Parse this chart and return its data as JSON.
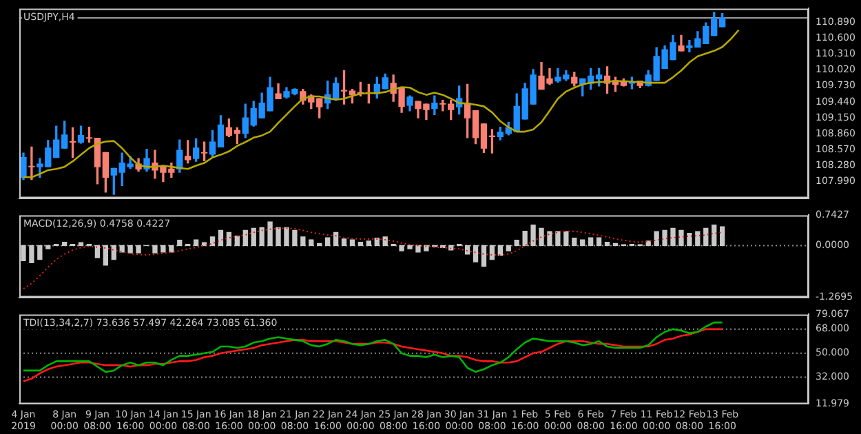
{
  "chart_data": [
    {
      "type": "candlestick",
      "title": "USDJPY,H4",
      "tick_labels": "y",
      "categories": [
        null,
        null,
        null,
        null,
        null,
        null,
        null,
        null,
        null,
        null,
        null,
        null,
        null,
        null,
        null,
        null,
        null,
        null,
        null,
        null,
        null,
        null,
        null,
        null,
        null,
        null,
        null,
        null,
        null,
        null,
        null,
        null,
        null,
        null,
        null,
        null,
        null,
        null,
        null,
        null,
        null,
        null,
        null,
        null,
        null,
        null,
        null,
        null,
        null,
        null,
        null,
        null,
        null,
        null,
        null,
        null,
        null,
        null,
        null,
        null,
        null,
        null,
        null,
        null,
        null,
        null,
        null,
        null,
        null,
        null,
        null,
        null,
        null,
        null,
        null,
        null,
        null,
        null,
        null,
        null,
        null,
        null,
        null,
        null,
        null,
        null,
        null,
        null,
        null,
        null,
        null,
        null,
        null,
        null,
        null,
        null
      ],
      "series": [
        {
          "ohlc": [
            [
              108.07,
              108.51,
              108.03,
              108.43
            ],
            [
              108.27,
              108.62,
              108.03,
              108.26
            ],
            [
              108.26,
              108.41,
              108.07,
              108.31
            ],
            [
              108.26,
              108.74,
              108.26,
              108.6
            ],
            [
              108.43,
              109.0,
              108.43,
              108.75
            ],
            [
              108.6,
              109.09,
              108.6,
              108.84
            ],
            [
              108.72,
              108.97,
              108.43,
              108.71
            ],
            [
              108.71,
              109.0,
              108.69,
              108.83
            ],
            [
              108.79,
              108.98,
              108.71,
              108.78
            ],
            [
              108.78,
              108.78,
              107.95,
              108.26
            ],
            [
              108.52,
              108.52,
              107.8,
              108.07
            ],
            [
              108.11,
              108.23,
              107.76,
              108.23
            ],
            [
              108.16,
              108.51,
              107.92,
              108.33
            ],
            [
              108.26,
              108.45,
              108.23,
              108.31
            ],
            [
              108.31,
              108.41,
              108.18,
              108.22
            ],
            [
              108.22,
              108.58,
              108.18,
              108.41
            ],
            [
              108.33,
              108.56,
              108.05,
              108.2
            ],
            [
              108.27,
              108.27,
              107.99,
              108.16
            ],
            [
              108.22,
              108.33,
              108.07,
              108.16
            ],
            [
              108.22,
              108.75,
              108.16,
              108.56
            ],
            [
              108.45,
              108.74,
              108.33,
              108.39
            ],
            [
              108.41,
              108.77,
              108.36,
              108.6
            ],
            [
              108.52,
              108.71,
              108.37,
              108.51
            ],
            [
              108.49,
              108.92,
              108.43,
              108.71
            ],
            [
              108.62,
              109.19,
              108.62,
              109.02
            ],
            [
              108.97,
              109.13,
              108.81,
              108.83
            ],
            [
              108.92,
              108.97,
              108.68,
              108.87
            ],
            [
              108.87,
              109.4,
              108.79,
              109.15
            ],
            [
              109.02,
              109.45,
              109.0,
              109.32
            ],
            [
              109.15,
              109.6,
              109.15,
              109.42
            ],
            [
              109.28,
              109.89,
              109.28,
              109.7
            ],
            [
              109.59,
              109.77,
              109.5,
              109.5
            ],
            [
              109.53,
              109.7,
              109.51,
              109.63
            ],
            [
              109.59,
              109.68,
              109.57,
              109.67
            ],
            [
              109.63,
              109.67,
              109.4,
              109.47
            ],
            [
              109.55,
              109.57,
              109.32,
              109.44
            ],
            [
              109.5,
              109.5,
              109.15,
              109.35
            ],
            [
              109.42,
              109.82,
              109.32,
              109.57
            ],
            [
              109.5,
              109.88,
              109.47,
              109.78
            ],
            [
              109.65,
              110.01,
              109.4,
              109.64
            ],
            [
              109.64,
              109.67,
              109.42,
              109.57
            ],
            [
              109.61,
              109.8,
              109.55,
              109.6
            ],
            [
              109.61,
              109.76,
              109.42,
              109.6
            ],
            [
              109.59,
              109.89,
              109.51,
              109.76
            ],
            [
              109.68,
              109.95,
              109.68,
              109.88
            ],
            [
              109.78,
              109.93,
              109.45,
              109.6
            ],
            [
              109.7,
              109.7,
              109.25,
              109.36
            ],
            [
              109.38,
              109.55,
              109.28,
              109.53
            ],
            [
              109.45,
              109.45,
              109.15,
              109.32
            ],
            [
              109.4,
              109.4,
              109.12,
              109.3
            ],
            [
              109.32,
              109.55,
              109.21,
              109.42
            ],
            [
              109.41,
              109.47,
              109.28,
              109.4
            ],
            [
              109.4,
              109.47,
              109.12,
              109.3
            ],
            [
              109.35,
              109.73,
              109.22,
              109.5
            ],
            [
              109.42,
              109.76,
              108.79,
              109.15
            ],
            [
              109.28,
              109.28,
              108.68,
              108.79
            ],
            [
              109.04,
              109.04,
              108.52,
              108.6
            ],
            [
              108.82,
              108.94,
              108.51,
              108.81
            ],
            [
              108.81,
              108.98,
              108.75,
              108.89
            ],
            [
              108.87,
              109.07,
              108.84,
              108.97
            ],
            [
              108.9,
              109.59,
              108.9,
              109.36
            ],
            [
              109.13,
              109.78,
              109.13,
              109.68
            ],
            [
              109.4,
              110.03,
              109.4,
              109.93
            ],
            [
              109.91,
              110.16,
              109.67,
              109.67
            ],
            [
              109.86,
              110.05,
              109.76,
              109.78
            ],
            [
              109.82,
              110.05,
              109.8,
              109.89
            ],
            [
              109.86,
              110.01,
              109.83,
              109.93
            ],
            [
              109.89,
              109.98,
              109.73,
              109.78
            ],
            [
              109.76,
              109.86,
              109.55,
              109.86
            ],
            [
              109.78,
              110.05,
              109.67,
              109.91
            ],
            [
              109.86,
              110.05,
              109.73,
              109.93
            ],
            [
              109.91,
              110.08,
              109.6,
              109.78
            ],
            [
              109.83,
              109.89,
              109.63,
              109.76
            ],
            [
              109.82,
              109.86,
              109.73,
              109.74
            ],
            [
              109.78,
              109.89,
              109.68,
              109.8
            ],
            [
              109.82,
              109.82,
              109.7,
              109.74
            ],
            [
              109.74,
              110.01,
              109.73,
              109.93
            ],
            [
              109.83,
              110.43,
              109.83,
              110.27
            ],
            [
              110.05,
              110.46,
              110.05,
              110.39
            ],
            [
              110.21,
              110.65,
              110.21,
              110.52
            ],
            [
              110.46,
              110.65,
              110.37,
              110.37
            ],
            [
              110.43,
              110.56,
              110.35,
              110.46
            ],
            [
              110.44,
              110.72,
              110.44,
              110.59
            ],
            [
              110.5,
              110.88,
              110.5,
              110.81
            ],
            [
              110.65,
              111.07,
              110.65,
              110.96
            ],
            [
              110.81,
              111.05,
              110.81,
              110.97
            ],
            null,
            null,
            null,
            null,
            null,
            null,
            null,
            null,
            null,
            null
          ],
          "colors": [
            "#1e90ff",
            "#fa8072",
            "#1e90ff",
            "#1e90ff",
            "#1e90ff",
            "#1e90ff",
            "#fa8072",
            "#1e90ff",
            "#fa8072",
            "#fa8072",
            "#fa8072",
            "#1e90ff",
            "#1e90ff",
            "#1e90ff",
            "#fa8072",
            "#1e90ff",
            "#fa8072",
            "#fa8072",
            "#fa8072",
            "#1e90ff",
            "#fa8072",
            "#1e90ff",
            "#fa8072",
            "#1e90ff",
            "#1e90ff",
            "#fa8072",
            "#fa8072",
            "#1e90ff",
            "#1e90ff",
            "#1e90ff",
            "#1e90ff",
            "#fa8072",
            "#1e90ff",
            "#1e90ff",
            "#fa8072",
            "#fa8072",
            "#fa8072",
            "#1e90ff",
            "#1e90ff",
            "#fa8072",
            "#fa8072",
            "#fa8072",
            "#fa8072",
            "#1e90ff",
            "#1e90ff",
            "#fa8072",
            "#fa8072",
            "#1e90ff",
            "#fa8072",
            "#fa8072",
            "#1e90ff",
            "#fa8072",
            "#fa8072",
            "#1e90ff",
            "#fa8072",
            "#fa8072",
            "#fa8072",
            "#fa8072",
            "#1e90ff",
            "#1e90ff",
            "#1e90ff",
            "#1e90ff",
            "#1e90ff",
            "#fa8072",
            "#fa8072",
            "#1e90ff",
            "#1e90ff",
            "#fa8072",
            "#1e90ff",
            "#1e90ff",
            "#1e90ff",
            "#fa8072",
            "#fa8072",
            "#fa8072",
            "#1e90ff",
            "#fa8072",
            "#1e90ff",
            "#1e90ff",
            "#1e90ff",
            "#1e90ff",
            "#fa8072",
            "#1e90ff",
            "#1e90ff",
            "#1e90ff",
            "#1e90ff",
            "#1e90ff",
            null,
            null,
            null,
            null,
            null,
            null,
            null,
            null,
            null,
            null
          ]
        },
        {
          "type": "line",
          "color": "#b5a800",
          "values": [
            108.07,
            108.07,
            108.13,
            108.2,
            108.22,
            108.26,
            108.36,
            108.48,
            108.6,
            108.68,
            108.72,
            108.73,
            108.6,
            108.43,
            108.29,
            108.26,
            108.26,
            108.28,
            108.26,
            108.24,
            108.22,
            108.28,
            108.33,
            108.43,
            108.48,
            108.54,
            108.64,
            108.71,
            108.79,
            108.83,
            108.9,
            109.06,
            109.21,
            109.36,
            109.5,
            109.54,
            109.54,
            109.51,
            109.48,
            109.5,
            109.55,
            109.59,
            109.6,
            109.6,
            109.62,
            109.67,
            109.71,
            109.7,
            109.62,
            109.57,
            109.61,
            109.57,
            109.5,
            109.42,
            109.41,
            109.39,
            109.36,
            109.25,
            109.09,
            108.98,
            108.9,
            108.9,
            108.94,
            109.07,
            109.28,
            109.5,
            109.63,
            109.7,
            109.76,
            109.79,
            109.8,
            109.81,
            109.82,
            109.82,
            109.81,
            109.8,
            109.79,
            109.79,
            109.79,
            109.89,
            110.01,
            110.16,
            110.27,
            110.32,
            110.37,
            110.44,
            110.58,
            110.75,
            null,
            null,
            null,
            null,
            null,
            null,
            null,
            null
          ]
        }
      ],
      "ylim": [
        107.69,
        111.14
      ],
      "yticks": [
        {
          "value": 107.99,
          "label": "107.990"
        },
        {
          "value": 108.28,
          "label": "108.280"
        },
        {
          "value": 108.57,
          "label": "108.570"
        },
        {
          "value": 108.86,
          "label": "108.860"
        },
        {
          "value": 109.15,
          "label": "109.150"
        },
        {
          "value": 109.44,
          "label": "109.440"
        },
        {
          "value": 109.73,
          "label": "109.730"
        },
        {
          "value": 110.02,
          "label": "110.020"
        },
        {
          "value": 110.31,
          "label": "110.310"
        },
        {
          "value": 110.6,
          "label": "110.600"
        },
        {
          "value": 110.89,
          "label": "110.890"
        }
      ],
      "ref_lines": [
        {
          "axis": "y",
          "value": 110.97,
          "color": "#9a9a9a"
        }
      ]
    },
    {
      "type": "bar",
      "title": "MACD(12,26,9) 0.4758 0.4227",
      "tick_labels": "y",
      "categories": [
        null,
        null,
        null,
        null,
        null,
        null,
        null,
        null,
        null,
        null,
        null,
        null,
        null,
        null,
        null,
        null,
        null,
        null,
        null,
        null,
        null,
        null,
        null,
        null,
        null,
        null,
        null,
        null,
        null,
        null,
        null,
        null,
        null,
        null,
        null,
        null,
        null,
        null,
        null,
        null,
        null,
        null,
        null,
        null,
        null,
        null,
        null,
        null,
        null,
        null,
        null,
        null,
        null,
        null,
        null,
        null,
        null,
        null,
        null,
        null,
        null,
        null,
        null,
        null,
        null,
        null,
        null,
        null,
        null,
        null,
        null,
        null,
        null,
        null,
        null,
        null,
        null,
        null,
        null,
        null,
        null,
        null,
        null,
        null,
        null,
        null,
        null,
        null,
        null,
        null,
        null,
        null,
        null,
        null,
        null,
        null
      ],
      "series": [
        {
          "color": "#c8c8c8",
          "values": [
            -0.37,
            -0.42,
            -0.34,
            -0.08,
            0.03,
            0.08,
            0.03,
            0.07,
            0.03,
            -0.3,
            -0.48,
            -0.34,
            -0.16,
            -0.18,
            -0.18,
            0.0,
            -0.18,
            -0.16,
            -0.16,
            0.13,
            0.03,
            0.14,
            0.07,
            0.21,
            0.37,
            0.32,
            0.23,
            0.37,
            0.42,
            0.44,
            0.58,
            0.44,
            0.44,
            0.37,
            0.21,
            0.14,
            0.05,
            0.19,
            0.32,
            0.16,
            0.14,
            0.08,
            0.11,
            0.18,
            0.21,
            0.03,
            -0.13,
            -0.08,
            -0.16,
            -0.13,
            -0.03,
            -0.05,
            -0.11,
            0.03,
            -0.21,
            -0.4,
            -0.51,
            -0.34,
            -0.24,
            -0.13,
            0.13,
            0.35,
            0.5,
            0.42,
            0.34,
            0.34,
            0.34,
            0.18,
            0.14,
            0.19,
            0.19,
            0.08,
            0.05,
            0.02,
            0.03,
            0.02,
            0.11,
            0.34,
            0.37,
            0.42,
            0.37,
            0.3,
            0.34,
            0.42,
            0.5,
            0.46,
            null,
            null,
            null,
            null,
            null,
            null,
            null,
            null,
            null,
            null
          ]
        },
        {
          "type": "line",
          "color": "#e02020",
          "line_style": "dotted",
          "values": [
            -1.06,
            -0.93,
            -0.74,
            -0.53,
            -0.34,
            -0.21,
            -0.11,
            -0.05,
            -0.02,
            -0.04,
            -0.06,
            -0.11,
            -0.15,
            -0.2,
            -0.22,
            -0.23,
            -0.21,
            -0.19,
            -0.16,
            -0.13,
            -0.08,
            -0.05,
            0.0,
            0.05,
            0.13,
            0.19,
            0.23,
            0.26,
            0.32,
            0.37,
            0.4,
            0.42,
            0.42,
            0.41,
            0.37,
            0.32,
            0.29,
            0.26,
            0.24,
            0.19,
            0.17,
            0.16,
            0.16,
            0.16,
            0.14,
            0.11,
            0.06,
            0.02,
            0.0,
            -0.02,
            -0.04,
            -0.05,
            -0.07,
            -0.08,
            -0.13,
            -0.17,
            -0.21,
            -0.23,
            -0.23,
            -0.21,
            -0.13,
            0.0,
            0.11,
            0.21,
            0.28,
            0.32,
            0.35,
            0.35,
            0.32,
            0.29,
            0.25,
            0.21,
            0.16,
            0.13,
            0.1,
            0.08,
            0.11,
            0.13,
            0.17,
            0.19,
            0.21,
            0.23,
            0.24,
            0.26,
            0.3,
            0.32,
            null,
            null,
            null,
            null,
            null,
            null,
            null,
            null,
            null,
            null
          ]
        }
      ],
      "ylim": [
        -1.2695,
        0.7427
      ],
      "yticks": [
        {
          "value": -1.2695,
          "label": "-1.2695"
        },
        {
          "value": 0,
          "label": "0.0000"
        },
        {
          "value": 0.7427,
          "label": "0.7427"
        }
      ],
      "ref_lines": [
        {
          "axis": "y",
          "value": 0,
          "color": "#8a8a8a",
          "line_style": "dotted"
        }
      ]
    },
    {
      "type": "line",
      "title": "TDI(13,34,2,7) 73.636 57.497 42.264 73.085 61.360",
      "categories": [
        "4 Jan 2019",
        null,
        null,
        null,
        null,
        "8 Jan 00:00",
        null,
        null,
        null,
        "9 Jan 08:00",
        null,
        null,
        null,
        "10 Jan 16:00",
        null,
        null,
        null,
        "14 Jan 00:00",
        null,
        null,
        null,
        "15 Jan 08:00",
        null,
        null,
        null,
        "16 Jan 16:00",
        null,
        null,
        null,
        "18 Jan 00:00",
        null,
        null,
        null,
        "21 Jan 08:00",
        null,
        null,
        null,
        "22 Jan 16:00",
        null,
        null,
        null,
        "24 Jan 00:00",
        null,
        null,
        null,
        "25 Jan 08:00",
        null,
        null,
        null,
        "28 Jan 16:00",
        null,
        null,
        null,
        "30 Jan 00:00",
        null,
        null,
        null,
        "31 Jan 08:00",
        null,
        null,
        null,
        "1 Feb 16:00",
        null,
        null,
        null,
        "5 Feb 00:00",
        null,
        null,
        null,
        "6 Feb 08:00",
        null,
        null,
        null,
        "7 Feb 16:00",
        null,
        null,
        null,
        "11 Feb 00:00",
        null,
        null,
        null,
        "12 Feb 08:00",
        null,
        null,
        null,
        "13 Feb 16:00",
        null,
        null,
        null,
        null,
        null,
        null,
        null,
        null,
        null,
        null
      ],
      "series": [
        {
          "color": "#00b400",
          "values": [
            37,
            37,
            37,
            41,
            44,
            44,
            44,
            44,
            44,
            40,
            36,
            37,
            41,
            43,
            41,
            43,
            43,
            41,
            45,
            48,
            48,
            49,
            50,
            51,
            55,
            55,
            54,
            55,
            58,
            59,
            61,
            62,
            61,
            60,
            59,
            56,
            55,
            57,
            60,
            59,
            57,
            56,
            57,
            59,
            60,
            57,
            50,
            48,
            48,
            47,
            49,
            47,
            48,
            47,
            39,
            36,
            38,
            41,
            43,
            47,
            53,
            58,
            61,
            60,
            59,
            59,
            59,
            58,
            56,
            57,
            59,
            55,
            54,
            54,
            54,
            54,
            56,
            62,
            66,
            68,
            67,
            65,
            66,
            70,
            73,
            73,
            null,
            null,
            null,
            null,
            null,
            null,
            null,
            null,
            null,
            null
          ]
        },
        {
          "color": "#ff1a1a",
          "values": [
            29,
            31,
            35,
            38,
            40,
            41,
            42,
            43,
            43,
            42,
            41,
            41,
            41,
            40,
            41,
            41,
            42,
            42,
            43,
            44,
            44,
            45,
            47,
            48,
            50,
            51,
            52,
            53,
            54,
            56,
            57,
            58,
            59,
            60,
            60,
            59,
            59,
            59,
            59,
            58,
            57,
            57,
            57,
            58,
            58,
            57,
            55,
            54,
            53,
            52,
            51,
            50,
            48,
            48,
            47,
            45,
            44,
            44,
            43,
            43,
            44,
            47,
            50,
            51,
            54,
            57,
            59,
            59,
            59,
            58,
            57,
            57,
            56,
            55,
            55,
            55,
            55,
            57,
            60,
            61,
            63,
            64,
            66,
            68,
            68,
            68,
            null,
            null,
            null,
            null,
            null,
            null,
            null,
            null,
            null,
            null
          ]
        }
      ],
      "ylim": [
        11.979,
        79.067
      ],
      "yticks": [
        {
          "value": 11.979,
          "label": "11.979"
        },
        {
          "value": 32,
          "label": "32.000"
        },
        {
          "value": 50,
          "label": "50.000"
        },
        {
          "value": 68,
          "label": "68.000"
        },
        {
          "value": 79.067,
          "label": "79.067"
        }
      ],
      "ref_lines": [
        {
          "axis": "y",
          "value": 68,
          "color": "#8a8a8a",
          "line_style": "dotted"
        },
        {
          "axis": "y",
          "value": 50,
          "color": "#8a8a8a",
          "line_style": "dotted"
        },
        {
          "axis": "y",
          "value": 32,
          "color": "#8a8a8a",
          "line_style": "dotted"
        }
      ]
    }
  ]
}
